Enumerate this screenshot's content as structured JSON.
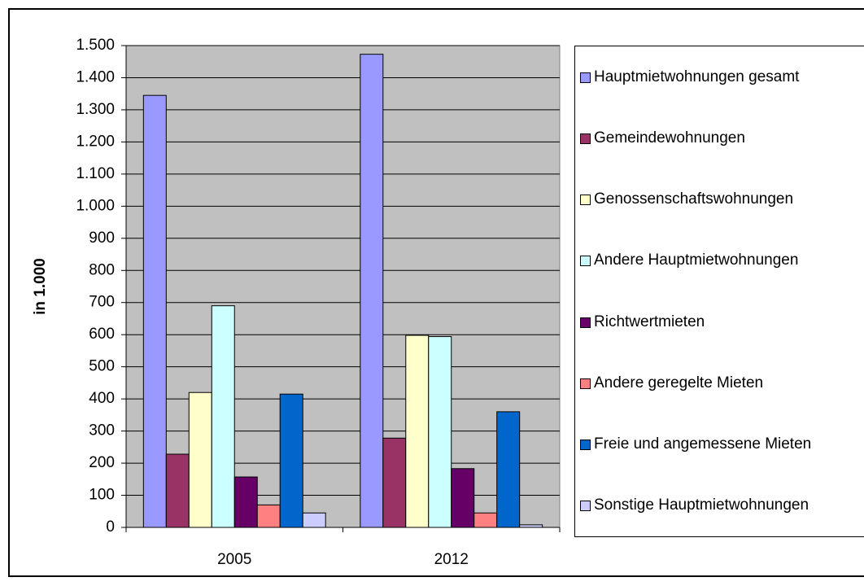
{
  "chart_data": {
    "type": "bar",
    "y_label": "in 1.000",
    "categories": [
      "2005",
      "2012"
    ],
    "series": [
      {
        "name": "Hauptmietwohnungen gesamt",
        "color": "#9999ff",
        "values": [
          1345,
          1473
        ]
      },
      {
        "name": "Gemeindewohnungen",
        "color": "#993366",
        "values": [
          228,
          278
        ]
      },
      {
        "name": "Genossenschaftswohnungen",
        "color": "#ffffcc",
        "values": [
          420,
          598
        ]
      },
      {
        "name": "Andere Hauptmietwohnungen",
        "color": "#ccffff",
        "values": [
          690,
          594
        ]
      },
      {
        "name": "Richtwertmieten",
        "color": "#660066",
        "values": [
          157,
          183
        ]
      },
      {
        "name": "Andere geregelte Mieten",
        "color": "#ff8080",
        "values": [
          70,
          45
        ]
      },
      {
        "name": "Freie und angemessene Mieten",
        "color": "#0066cc",
        "values": [
          415,
          360
        ]
      },
      {
        "name": "Sonstige Hauptmietwohnungen",
        "color": "#ccccff",
        "values": [
          45,
          8
        ]
      }
    ],
    "ylim": [
      0,
      1500
    ],
    "yticks": [
      0,
      100,
      200,
      300,
      400,
      500,
      600,
      700,
      800,
      900,
      {
        "value": 1000,
        "label": "1.000"
      },
      {
        "value": 1100,
        "label": "1.100"
      },
      {
        "value": 1200,
        "label": "1.200"
      },
      {
        "value": 1300,
        "label": "1.300"
      },
      {
        "value": 1400,
        "label": "1.400"
      },
      {
        "value": 1500,
        "label": "1.500"
      }
    ],
    "grid": true,
    "plot_background": "#c0c0c0",
    "legend": "right"
  }
}
